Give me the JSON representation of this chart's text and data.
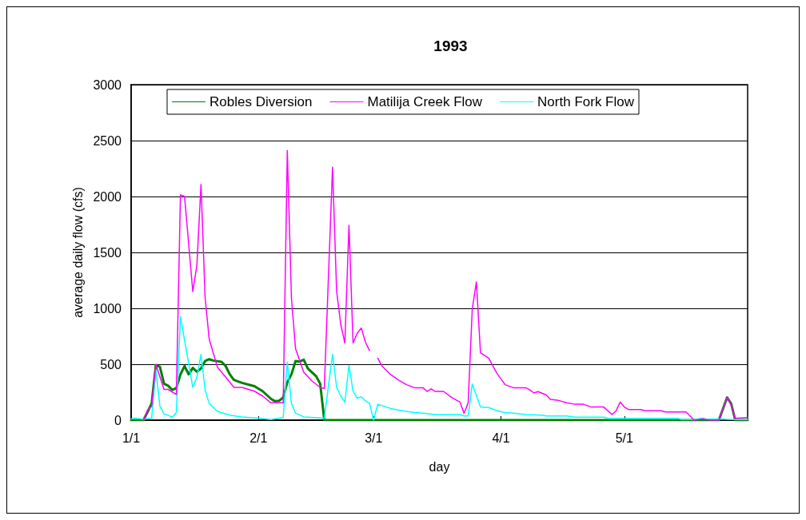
{
  "chart_data": {
    "type": "line",
    "title": "1993",
    "xlabel": "day",
    "ylabel": "average daily flow (cfs)",
    "xlim": [
      "--01-01",
      "--05-31"
    ],
    "xticks": [
      {
        "value": "--01-01",
        "label": "1/1"
      },
      {
        "value": "--02-01",
        "label": "2/1"
      },
      {
        "value": "--03-01",
        "label": "3/1"
      },
      {
        "value": "--04-01",
        "label": "4/1"
      },
      {
        "value": "--05-01",
        "label": "5/1"
      }
    ],
    "ylim": [
      0,
      3000
    ],
    "yticks": [
      0,
      500,
      1000,
      1500,
      2000,
      2500,
      3000
    ],
    "grid": "y",
    "legend": "top",
    "marker": "none",
    "line_style": "solid",
    "series": [
      {
        "name": "Robles Diversion",
        "color": "#008000",
        "x": [
          "--01-01",
          "--01-04",
          "--01-06",
          "--01-07",
          "--01-08",
          "--01-09",
          "--01-10",
          "--01-11",
          "--01-12",
          "--01-13",
          "--01-14",
          "--01-15",
          "--01-16",
          "--01-17",
          "--01-18",
          "--01-19",
          "--01-20",
          "--01-21",
          "--01-23",
          "--01-24",
          "--01-25",
          "--01-26",
          "--01-28",
          "--01-31",
          "--02-02",
          "--02-04",
          "--02-05",
          "--02-06",
          "--02-07",
          "--02-08",
          "--02-09",
          "--02-10",
          "--02-11",
          "--02-12",
          "--02-13",
          "--02-15",
          "--02-16",
          "--02-17",
          "--05-24",
          "--05-26",
          "--05-27",
          "--05-28",
          "--05-31"
        ],
        "values": [
          0,
          0,
          149,
          490,
          478,
          326,
          308,
          270,
          286,
          410,
          484,
          410,
          467,
          433,
          462,
          529,
          545,
          533,
          522,
          484,
          410,
          360,
          333,
          304,
          259,
          191,
          169,
          173,
          203,
          338,
          410,
          529,
          524,
          540,
          462,
          394,
          326,
          0,
          0,
          203,
          146,
          0,
          0
        ]
      },
      {
        "name": "Matilija Creek Flow",
        "color": "#ff00ff",
        "x": [
          "--01-04",
          "--01-05",
          "--01-06",
          "--01-07",
          "--01-09",
          "--01-10",
          "--01-12",
          "--01-13",
          "--01-14",
          "--01-16",
          "--01-17",
          "--01-18",
          "--01-19",
          "--01-20",
          "--01-22",
          "--01-24",
          "--01-26",
          "--01-28",
          "--01-31",
          "--02-02",
          "--02-04",
          "--02-07",
          "--02-08",
          "--02-09",
          "--02-10",
          "--02-12",
          "--02-14",
          "--02-16",
          "--02-17",
          "--02-19",
          "--02-20",
          "--02-21",
          "--02-22",
          "--02-23",
          "--02-24",
          "--02-25",
          "--02-26",
          "--02-27",
          "--02-28",
          "--03-01",
          "--03-02",
          "--03-03",
          "--03-05",
          "--03-07",
          "--03-09",
          "--03-11",
          "--03-13",
          "--03-14",
          "--03-15",
          "--03-16",
          "--03-18",
          "--03-20",
          "--03-22",
          "--03-23",
          "--03-24",
          "--03-25",
          "--03-26",
          "--03-27",
          "--03-29",
          "--03-31",
          "--04-02",
          "--04-04",
          "--04-07",
          "--04-08",
          "--04-09",
          "--04-10",
          "--04-12",
          "--04-13",
          "--04-15",
          "--04-17",
          "--04-19",
          "--04-21",
          "--04-23",
          "--04-26",
          "--04-28",
          "--04-29",
          "--04-30",
          "--05-01",
          "--05-02",
          "--05-05",
          "--05-06",
          "--05-10",
          "--05-11",
          "--05-16",
          "--05-18",
          "--05-20",
          "--05-22",
          "--05-24",
          "--05-26",
          "--05-27",
          "--05-28",
          "--05-31"
        ],
        "values": [
          0,
          90,
          125,
          500,
          275,
          275,
          230,
          2015,
          2000,
          1150,
          1385,
          2108,
          1095,
          723,
          473,
          385,
          293,
          293,
          259,
          216,
          155,
          155,
          2410,
          1095,
          640,
          428,
          350,
          293,
          283,
          2263,
          1150,
          857,
          689,
          1743,
          689,
          777,
          824,
          698,
          622,
          null,
          554,
          486,
          412,
          360,
          317,
          290,
          290,
          257,
          280,
          257,
          257,
          203,
          162,
          61,
          155,
          993,
          1236,
          603,
          554,
          419,
          317,
          290,
          290,
          270,
          243,
          255,
          225,
          185,
          176,
          155,
          142,
          142,
          117,
          117,
          50,
          84,
          162,
          117,
          95,
          95,
          84,
          84,
          73,
          73,
          0,
          11,
          0,
          0,
          203,
          135,
          16,
          23
        ]
      },
      {
        "name": "North Fork Flow",
        "color": "#00ffff",
        "x": [
          "--01-01",
          "--01-02",
          "--01-04",
          "--01-06",
          "--01-07",
          "--01-08",
          "--01-09",
          "--01-11",
          "--01-12",
          "--01-13",
          "--01-15",
          "--01-16",
          "--01-17",
          "--01-18",
          "--01-19",
          "--01-20",
          "--01-22",
          "--01-25",
          "--01-28",
          "--02-01",
          "--02-04",
          "--02-07",
          "--02-08",
          "--02-09",
          "--02-10",
          "--02-12",
          "--02-17",
          "--02-19",
          "--02-20",
          "--02-21",
          "--02-22",
          "--02-23",
          "--02-24",
          "--02-25",
          "--02-26",
          "--02-27",
          "--02-28",
          "--03-01",
          "--03-02",
          "--03-05",
          "--03-08",
          "--03-11",
          "--03-13",
          "--03-16",
          "--03-22",
          "--03-23",
          "--03-24",
          "--03-25",
          "--03-27",
          "--03-29",
          "--03-31",
          "--04-02",
          "--04-04",
          "--04-07",
          "--04-11",
          "--04-12",
          "--04-17",
          "--04-19",
          "--04-26",
          "--04-27",
          "--05-14",
          "--05-15",
          "--05-18",
          "--05-20",
          "--05-21",
          "--05-24",
          "--05-27",
          "--05-31"
        ],
        "values": [
          11,
          18,
          7,
          18,
          453,
          124,
          56,
          29,
          68,
          925,
          507,
          293,
          385,
          588,
          270,
          149,
          79,
          45,
          29,
          18,
          5,
          23,
          520,
          149,
          63,
          29,
          18,
          588,
          293,
          216,
          162,
          489,
          259,
          196,
          209,
          173,
          151,
          0,
          142,
          106,
          84,
          68,
          63,
          50,
          50,
          38,
          38,
          324,
          117,
          113,
          84,
          68,
          63,
          50,
          45,
          38,
          38,
          27,
          27,
          16,
          16,
          5,
          5,
          18,
          7,
          11,
          5,
          5
        ]
      }
    ]
  }
}
